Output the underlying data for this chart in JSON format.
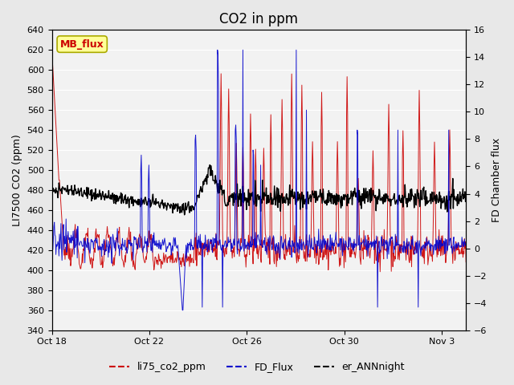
{
  "title": "CO2 in ppm",
  "ylabel_left": "LI7500 CO2 (ppm)",
  "ylabel_right": "FD Chamber flux",
  "ylim_left": [
    340,
    640
  ],
  "ylim_right": [
    -6,
    16
  ],
  "yticks_left": [
    340,
    360,
    380,
    400,
    420,
    440,
    460,
    480,
    500,
    520,
    540,
    560,
    580,
    600,
    620,
    640
  ],
  "yticks_right": [
    -6,
    -4,
    -2,
    0,
    2,
    4,
    6,
    8,
    10,
    12,
    14,
    16
  ],
  "xtick_labels": [
    "Oct 18",
    "Oct 22",
    "Oct 26",
    "Oct 30",
    "Nov 3"
  ],
  "color_red": "#cc0000",
  "color_blue": "#0000cc",
  "color_black": "#000000",
  "color_bg": "#e8e8e8",
  "color_plot_bg": "#f2f2f2",
  "legend_labels": [
    "li75_co2_ppm",
    "FD_Flux",
    "er_ANNnight"
  ],
  "annotation_text": "MB_flux",
  "annotation_box_color": "#ffff99",
  "annotation_text_color": "#cc0000",
  "title_fontsize": 12,
  "axis_label_fontsize": 9,
  "tick_fontsize": 8,
  "legend_fontsize": 9
}
